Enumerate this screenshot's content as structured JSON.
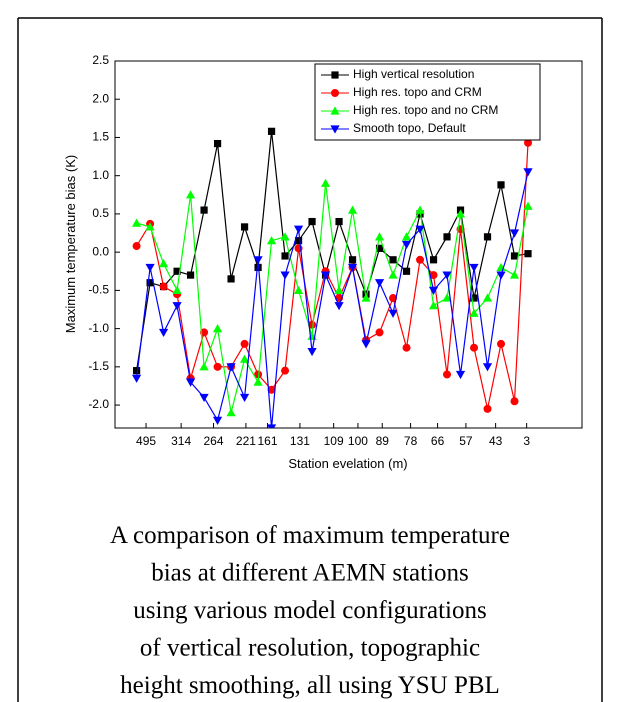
{
  "chart_data": {
    "type": "line",
    "ylabel": "Maximum temperature bias (K)",
    "xlabel": "Station evelation (m)",
    "x": [
      1,
      2,
      3,
      4,
      5,
      6,
      7,
      8,
      9,
      10,
      11,
      12,
      13,
      14,
      15,
      16,
      17,
      18,
      19,
      20,
      21,
      22,
      23,
      24,
      25,
      26,
      27,
      28,
      29,
      30
    ],
    "xlim": [
      -0.6,
      34
    ],
    "xticks": [
      {
        "value": 1.7,
        "label": "495"
      },
      {
        "value": 4.3,
        "label": "314"
      },
      {
        "value": 6.7,
        "label": "264"
      },
      {
        "value": 9.1,
        "label": "221"
      },
      {
        "value": 10.7,
        "label": "161"
      },
      {
        "value": 13.1,
        "label": "131"
      },
      {
        "value": 15.6,
        "label": "109"
      },
      {
        "value": 17.4,
        "label": "100"
      },
      {
        "value": 19.2,
        "label": "89"
      },
      {
        "value": 21.3,
        "label": "78"
      },
      {
        "value": 23.3,
        "label": "66"
      },
      {
        "value": 25.4,
        "label": "57"
      },
      {
        "value": 27.6,
        "label": "43"
      },
      {
        "value": 29.9,
        "label": "3"
      }
    ],
    "ylim": [
      -2.3,
      2.5
    ],
    "yticks": [
      2.5,
      {
        "value": 2,
        "label": "2.0"
      },
      1.5,
      {
        "value": 1,
        "label": "1.0"
      },
      0.5,
      {
        "value": 0,
        "label": "0.0"
      },
      -0.5,
      {
        "value": -1,
        "label": "-1.0"
      },
      -1.5,
      {
        "value": -2,
        "label": "-2.0"
      }
    ],
    "legend": "upper right",
    "series": [
      {
        "name": "High vertical resolution",
        "color": "#000000",
        "marker": "square",
        "values": [
          -1.55,
          -0.4,
          -0.45,
          -0.25,
          -0.3,
          0.55,
          1.42,
          -0.35,
          0.33,
          -0.2,
          1.58,
          -0.05,
          0.15,
          0.4,
          -0.3,
          0.4,
          -0.1,
          -0.55,
          0.05,
          -0.1,
          -0.25,
          0.5,
          -0.1,
          0.2,
          0.55,
          -0.6,
          0.2,
          0.88,
          -0.05,
          -0.02
        ]
      },
      {
        "name": "High res. topo and CRM",
        "color": "#ff0000",
        "marker": "circle",
        "values": [
          0.08,
          0.37,
          -0.45,
          -0.55,
          -1.65,
          -1.05,
          -1.5,
          -1.5,
          -1.2,
          -1.6,
          -1.8,
          -1.55,
          0.05,
          -0.95,
          -0.25,
          -0.6,
          -0.2,
          -1.15,
          -1.05,
          -0.6,
          -1.25,
          -0.1,
          -0.3,
          -1.6,
          0.3,
          -1.25,
          -2.05,
          -1.2,
          -1.95,
          1.43
        ]
      },
      {
        "name": "High res. topo and no CRM",
        "color": "#00ff00",
        "marker": "triangle-up",
        "values": [
          0.38,
          0.33,
          -0.15,
          -0.5,
          0.75,
          -1.5,
          -1.0,
          -2.1,
          -1.4,
          -1.7,
          0.15,
          0.2,
          -0.5,
          -1.1,
          0.9,
          -0.5,
          0.55,
          -0.6,
          0.2,
          -0.3,
          0.2,
          0.55,
          -0.7,
          -0.6,
          0.5,
          -0.8,
          -0.6,
          -0.2,
          -0.3,
          0.6
        ]
      },
      {
        "name": "Smooth topo, Default",
        "color": "#0000ff",
        "marker": "triangle-down",
        "values": [
          -1.65,
          -0.2,
          -1.05,
          -0.7,
          -1.7,
          -1.9,
          -2.2,
          -1.5,
          -1.9,
          -0.1,
          -2.3,
          -0.3,
          0.3,
          -1.3,
          -0.3,
          -0.7,
          -0.2,
          -1.2,
          -0.4,
          -0.8,
          0.1,
          0.3,
          -0.5,
          -0.3,
          -1.6,
          -0.2,
          -1.5,
          -0.3,
          0.25,
          1.05
        ]
      }
    ],
    "caption": [
      "A comparison of maximum temperature",
      "bias at different AEMN  stations",
      "using various model configurations",
      "of vertical resolution, topographic",
      "height smoothing, all using YSU PBL"
    ]
  }
}
